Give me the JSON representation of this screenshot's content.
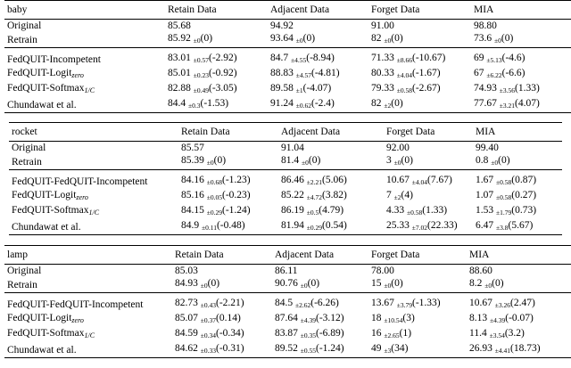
{
  "tables": [
    {
      "header": {
        "label": "baby",
        "columns": [
          "Retain Data",
          "Adjacent Data",
          "Forget Data",
          "MIA"
        ]
      },
      "rows": [
        {
          "method": "Original",
          "cells": [
            "85.68",
            "94.92",
            "91.00",
            "98.80"
          ]
        },
        {
          "method": "Retrain",
          "cells": [
            {
              "value": "85.92",
              "std": "±0",
              "diff": "(0)"
            },
            {
              "value": "93.64",
              "std": "±0",
              "diff": "(0)"
            },
            {
              "value": "82",
              "std": "±0",
              "diff": "(0)"
            },
            {
              "value": "73.6",
              "std": "±0",
              "diff": "(0)"
            }
          ]
        },
        {
          "method": "FedQUIT-Incompetent",
          "cells": [
            {
              "value": "83.01",
              "std": "±0.57",
              "diff": "(-2.92)"
            },
            {
              "value": "84.7",
              "std": "±4.55",
              "diff": "(-8.94)"
            },
            {
              "value": "71.33",
              "std": "±8.66",
              "diff": "(-10.67)"
            },
            {
              "value": "69",
              "std": "±5.13",
              "diff": "(-4.6)"
            }
          ]
        },
        {
          "method": {
            "text": "FedQUIT-Logit",
            "sub": "zero"
          },
          "cells": [
            {
              "value": "85.01",
              "std": "±0.23",
              "diff": "(-0.92)"
            },
            {
              "value": "88.83",
              "std": "±4.57",
              "diff": "(-4.81)"
            },
            {
              "value": "80.33",
              "std": "±4.04",
              "diff": "(-1.67)"
            },
            {
              "value": "67",
              "std": "±6.22",
              "diff": "(-6.6)"
            }
          ]
        },
        {
          "method": {
            "text": "FedQUIT-Softmax",
            "sub": "1/C"
          },
          "cells": [
            {
              "value": "82.88",
              "std": "±0.49",
              "diff": "(-3.05)"
            },
            {
              "value": "89.58",
              "std": "±1",
              "diff": "(-4.07)"
            },
            {
              "value": "79.33",
              "std": "±0.58",
              "diff": "(-2.67)"
            },
            {
              "value": "74.93",
              "std": "±3.56",
              "diff": "(1.33)"
            }
          ]
        },
        {
          "method": "Chundawat et al.",
          "cells": [
            {
              "value": "84.4",
              "std": "±0.3",
              "diff": "(-1.53)"
            },
            {
              "value": "91.24",
              "std": "±0.62",
              "diff": "(-2.4)"
            },
            {
              "value": "82",
              "std": "±2",
              "diff": "(0)"
            },
            {
              "value": "77.67",
              "std": "±3.21",
              "diff": "(4.07)"
            }
          ]
        }
      ]
    },
    {
      "header": {
        "label": "rocket",
        "columns": [
          "Retain Data",
          "Adjacent Data",
          "Forget Data",
          "MIA"
        ]
      },
      "rows": [
        {
          "method": "Original",
          "cells": [
            "85.57",
            "91.04",
            "92.00",
            "99.40"
          ]
        },
        {
          "method": "Retrain",
          "cells": [
            {
              "value": "85.39",
              "std": "±0",
              "diff": "(0)"
            },
            {
              "value": "81.4",
              "std": "±0",
              "diff": "(0)"
            },
            {
              "value": "3",
              "std": "±0",
              "diff": "(0)"
            },
            {
              "value": "0.8",
              "std": "±0",
              "diff": "(0)"
            }
          ]
        },
        {
          "method": "FedQUIT-FedQUIT-Incompetent",
          "cells": [
            {
              "value": "84.16",
              "std": "±0.68",
              "diff": "(-1.23)"
            },
            {
              "value": "86.46",
              "std": "±2.21",
              "diff": "(5.06)"
            },
            {
              "value": "10.67",
              "std": "±4.04",
              "diff": "(7.67)"
            },
            {
              "value": "1.67",
              "std": "±0.58",
              "diff": "(0.87)"
            }
          ]
        },
        {
          "method": {
            "text": "FedQUIT-Logit",
            "sub": "zero"
          },
          "cells": [
            {
              "value": "85.16",
              "std": "±0.05",
              "diff": "(-0.23)"
            },
            {
              "value": "85.22",
              "std": "±4.72",
              "diff": "(3.82)"
            },
            {
              "value": "7",
              "std": "±2",
              "diff": "(4)"
            },
            {
              "value": "1.07",
              "std": "±0.58",
              "diff": "(0.27)"
            }
          ]
        },
        {
          "method": {
            "text": "FedQUIT-Softmax",
            "sub": "1/C"
          },
          "cells": [
            {
              "value": "84.15",
              "std": "±0.29",
              "diff": "(-1.24)"
            },
            {
              "value": "86.19",
              "std": "±0.5",
              "diff": "(4.79)"
            },
            {
              "value": "4.33",
              "std": "±0.58",
              "diff": "(1.33)"
            },
            {
              "value": "1.53",
              "std": "±1.79",
              "diff": "(0.73)"
            }
          ]
        },
        {
          "method": "Chundawat et al.",
          "cells": [
            {
              "value": "84.9",
              "std": "±0.11",
              "diff": "(-0.48)"
            },
            {
              "value": "81.94",
              "std": "±0.29",
              "diff": "(0.54)"
            },
            {
              "value": "25.33",
              "std": "±7.02",
              "diff": "(22.33)"
            },
            {
              "value": "6.47",
              "std": "±3.8",
              "diff": "(5.67)"
            }
          ]
        }
      ]
    },
    {
      "header": {
        "label": "lamp",
        "columns": [
          "Retain Data",
          "Adjacent Data",
          "Forget Data",
          "MIA"
        ]
      },
      "rows": [
        {
          "method": "Original",
          "cells": [
            "85.03",
            "86.11",
            "78.00",
            "88.60"
          ]
        },
        {
          "method": "Retrain",
          "cells": [
            {
              "value": "84.93",
              "std": "±0",
              "diff": "(0)"
            },
            {
              "value": "90.76",
              "std": "±0",
              "diff": "(0)"
            },
            {
              "value": "15",
              "std": "±0",
              "diff": "(0)"
            },
            {
              "value": "8.2",
              "std": "±0",
              "diff": "(0)"
            }
          ]
        },
        {
          "method": "FedQUIT-FedQUIT-Incompetent",
          "cells": [
            {
              "value": "82.73",
              "std": "±0.43",
              "diff": "(-2.21)"
            },
            {
              "value": "84.5",
              "std": "±2.62",
              "diff": "(-6.26)"
            },
            {
              "value": "13.67",
              "std": "±3.79",
              "diff": "(-1.33)"
            },
            {
              "value": "10.67",
              "std": "±3.26",
              "diff": "(2.47)"
            }
          ]
        },
        {
          "method": {
            "text": "FedQUIT-Logit",
            "sub": "zero"
          },
          "cells": [
            {
              "value": "85.07",
              "std": "±0.37",
              "diff": "(0.14)"
            },
            {
              "value": "87.64",
              "std": "±4.39",
              "diff": "(-3.12)"
            },
            {
              "value": "18",
              "std": "±10.54",
              "diff": "(3)"
            },
            {
              "value": "8.13",
              "std": "±4.39",
              "diff": "(-0.07)"
            }
          ]
        },
        {
          "method": {
            "text": "FedQUIT-Softmax",
            "sub": "1/C"
          },
          "cells": [
            {
              "value": "84.59",
              "std": "±0.34",
              "diff": "(-0.34)"
            },
            {
              "value": "83.87",
              "std": "±0.35",
              "diff": "(-6.89)"
            },
            {
              "value": "16",
              "std": "±2.65",
              "diff": "(1)"
            },
            {
              "value": "11.4",
              "std": "±3.54",
              "diff": "(3.2)"
            }
          ]
        },
        {
          "method": "Chundawat et al.",
          "cells": [
            {
              "value": "84.62",
              "std": "±0.33",
              "diff": "(-0.31)"
            },
            {
              "value": "89.52",
              "std": "±0.55",
              "diff": "(-1.24)"
            },
            {
              "value": "49",
              "std": "±3",
              "diff": "(34)"
            },
            {
              "value": "26.93",
              "std": "±4.41",
              "diff": "(18.73)"
            }
          ]
        }
      ]
    }
  ]
}
